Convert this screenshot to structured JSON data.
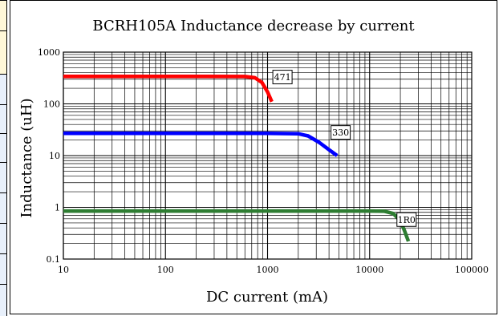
{
  "chart_data": {
    "type": "line",
    "title": "BCRH105A Inductance decrease by current",
    "xlabel": "DC current (mA)",
    "ylabel": "Inductance (uH)",
    "x_scale": "log",
    "y_scale": "log",
    "xlim": [
      10,
      100000
    ],
    "ylim": [
      0.1,
      1000
    ],
    "x_ticks": [
      10,
      100,
      1000,
      10000,
      100000
    ],
    "x_tick_labels": [
      "10",
      "100",
      "1000",
      "10000",
      "100000"
    ],
    "y_ticks": [
      0.1,
      1,
      10,
      100,
      1000
    ],
    "y_tick_labels": [
      "0.1",
      "1",
      "10",
      "100",
      "1000"
    ],
    "grid": true,
    "series": [
      {
        "name": "471",
        "color": "#ff0000",
        "points": [
          [
            10,
            340
          ],
          [
            200,
            340
          ],
          [
            600,
            338
          ],
          [
            750,
            320
          ],
          [
            880,
            260
          ],
          [
            1000,
            170
          ],
          [
            1100,
            110
          ]
        ]
      },
      {
        "name": "330",
        "color": "#0000ff",
        "points": [
          [
            10,
            27
          ],
          [
            1000,
            27
          ],
          [
            2000,
            26.5
          ],
          [
            2500,
            24
          ],
          [
            3200,
            18
          ],
          [
            4000,
            13
          ],
          [
            4800,
            10
          ]
        ]
      },
      {
        "name": "1R0",
        "color": "#2e7d32",
        "points": [
          [
            10,
            0.85
          ],
          [
            10000,
            0.85
          ],
          [
            14000,
            0.84
          ],
          [
            17000,
            0.76
          ],
          [
            20000,
            0.55
          ],
          [
            22000,
            0.35
          ],
          [
            24000,
            0.22
          ]
        ]
      }
    ],
    "annotations": [
      {
        "text": "471",
        "x": 1400,
        "y": 330
      },
      {
        "text": "330",
        "x": 5200,
        "y": 28
      },
      {
        "text": "1R0",
        "x": 23000,
        "y": 0.58
      }
    ]
  }
}
